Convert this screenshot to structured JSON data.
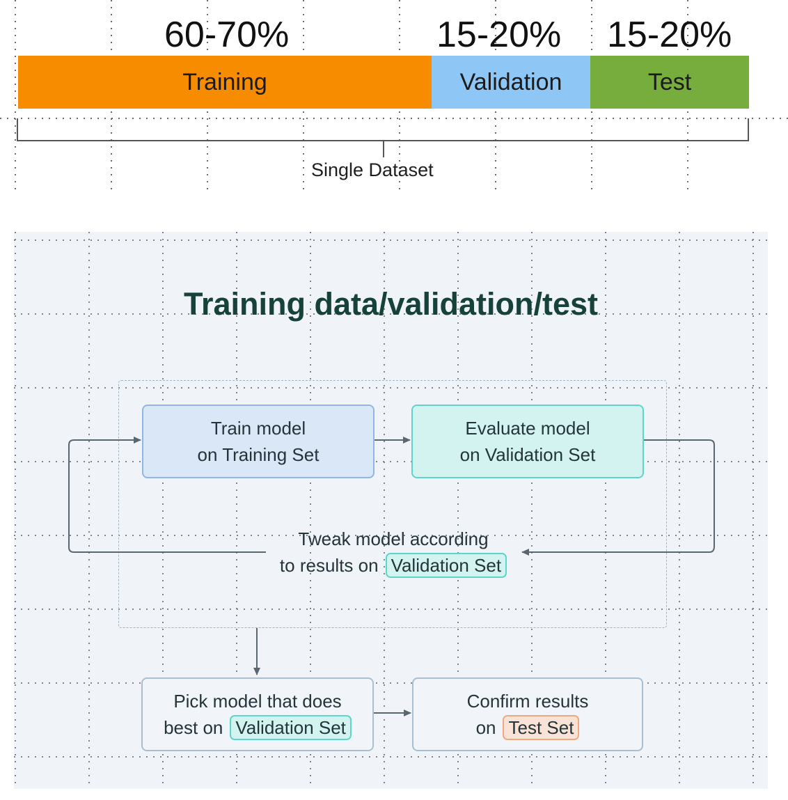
{
  "split_bar": {
    "segments": [
      {
        "label": "Training",
        "percent": "60-70%",
        "color": "#f78c00"
      },
      {
        "label": "Validation",
        "percent": "15-20%",
        "color": "#8ec7f5"
      },
      {
        "label": "Test",
        "percent": "15-20%",
        "color": "#76ad3c"
      }
    ],
    "dataset_label": "Single Dataset"
  },
  "diagram": {
    "title": "Training data/validation/test",
    "train_node": {
      "line1": "Train model",
      "line2": "on Training Set"
    },
    "eval_node": {
      "line1": "Evaluate model",
      "line2": "on Validation Set"
    },
    "tweak_text": {
      "line1": "Tweak model according",
      "line2_prefix": "to results on",
      "tag": "Validation Set"
    },
    "pick_node": {
      "line1": "Pick model that does",
      "line2_prefix": "best on",
      "tag": "Validation Set"
    },
    "confirm_node": {
      "line1": "Confirm results",
      "line2_prefix": "on",
      "tag": "Test Set"
    },
    "colors": {
      "panel_background": "#f0f4f8",
      "title": "#17413b",
      "connector": "#5b6770",
      "validation_tag": "#d2f3ef",
      "test_tag": "#f9e3d6"
    }
  }
}
